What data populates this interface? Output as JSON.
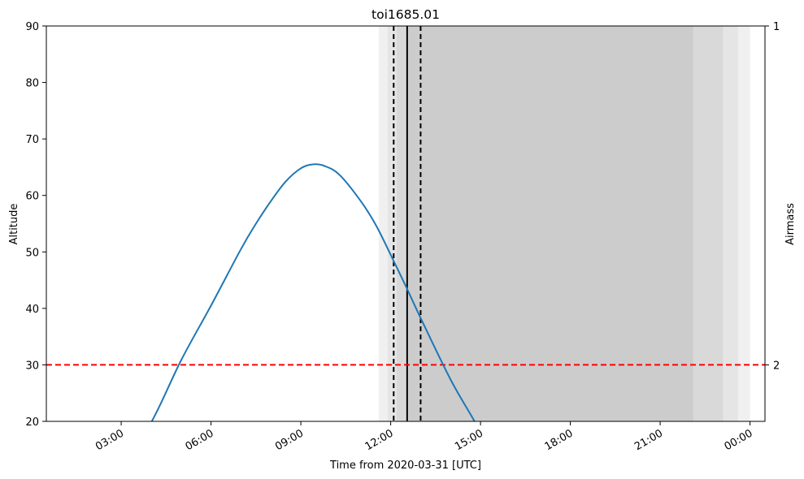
{
  "chart_data": {
    "type": "line",
    "title": "toi1685.01",
    "xlabel": "Time from 2020-03-31 [UTC]",
    "ylabel": "Altitude",
    "y2label": "Airmass",
    "xlim_hours": [
      0.5,
      24.5
    ],
    "ylim": [
      20,
      90
    ],
    "x_ticks": [
      {
        "hour": 3,
        "label": "03:00"
      },
      {
        "hour": 6,
        "label": "06:00"
      },
      {
        "hour": 9,
        "label": "09:00"
      },
      {
        "hour": 12,
        "label": "12:00"
      },
      {
        "hour": 15,
        "label": "15:00"
      },
      {
        "hour": 18,
        "label": "18:00"
      },
      {
        "hour": 21,
        "label": "21:00"
      },
      {
        "hour": 24,
        "label": "00:00"
      }
    ],
    "y_ticks": [
      20,
      30,
      40,
      50,
      60,
      70,
      80,
      90
    ],
    "y2_ticks": [
      {
        "altitude": 90,
        "label": "1"
      },
      {
        "altitude": 30,
        "label": "2"
      }
    ],
    "series": [
      {
        "color": "#1f77b4",
        "points": [
          {
            "hour": 3.0,
            "alt": 12.0
          },
          {
            "hour": 4.0,
            "alt": 19.8
          },
          {
            "hour": 5.0,
            "alt": 30.8
          },
          {
            "hour": 6.0,
            "alt": 40.5
          },
          {
            "hour": 7.0,
            "alt": 50.5
          },
          {
            "hour": 7.5,
            "alt": 55.0
          },
          {
            "hour": 8.0,
            "alt": 59.0
          },
          {
            "hour": 8.5,
            "alt": 62.5
          },
          {
            "hour": 9.0,
            "alt": 64.8
          },
          {
            "hour": 9.4,
            "alt": 65.5
          },
          {
            "hour": 9.8,
            "alt": 65.2
          },
          {
            "hour": 10.3,
            "alt": 63.6
          },
          {
            "hour": 11.0,
            "alt": 59.0
          },
          {
            "hour": 11.5,
            "alt": 54.8
          },
          {
            "hour": 12.0,
            "alt": 49.5
          },
          {
            "hour": 12.5,
            "alt": 44.0
          },
          {
            "hour": 13.0,
            "alt": 38.3
          },
          {
            "hour": 14.0,
            "alt": 27.4
          },
          {
            "hour": 14.8,
            "alt": 20.0
          },
          {
            "hour": 15.5,
            "alt": 13.0
          }
        ]
      }
    ],
    "horizontal_line": {
      "altitude": 30,
      "color": "#ff0000",
      "style": "dashed"
    },
    "transit": {
      "mid_hour": 12.55,
      "start_hour": 12.1,
      "end_hour": 13.0
    },
    "twilight_bands": [
      {
        "start_hour": 11.6,
        "end_hour": 24.0,
        "color": "#f0f0f0"
      },
      {
        "start_hour": 11.9,
        "end_hour": 23.6,
        "color": "#e5e5e5"
      },
      {
        "start_hour": 12.2,
        "end_hour": 23.1,
        "color": "#d9d9d9"
      },
      {
        "start_hour": 12.6,
        "end_hour": 22.1,
        "color": "#cccccc"
      }
    ]
  }
}
